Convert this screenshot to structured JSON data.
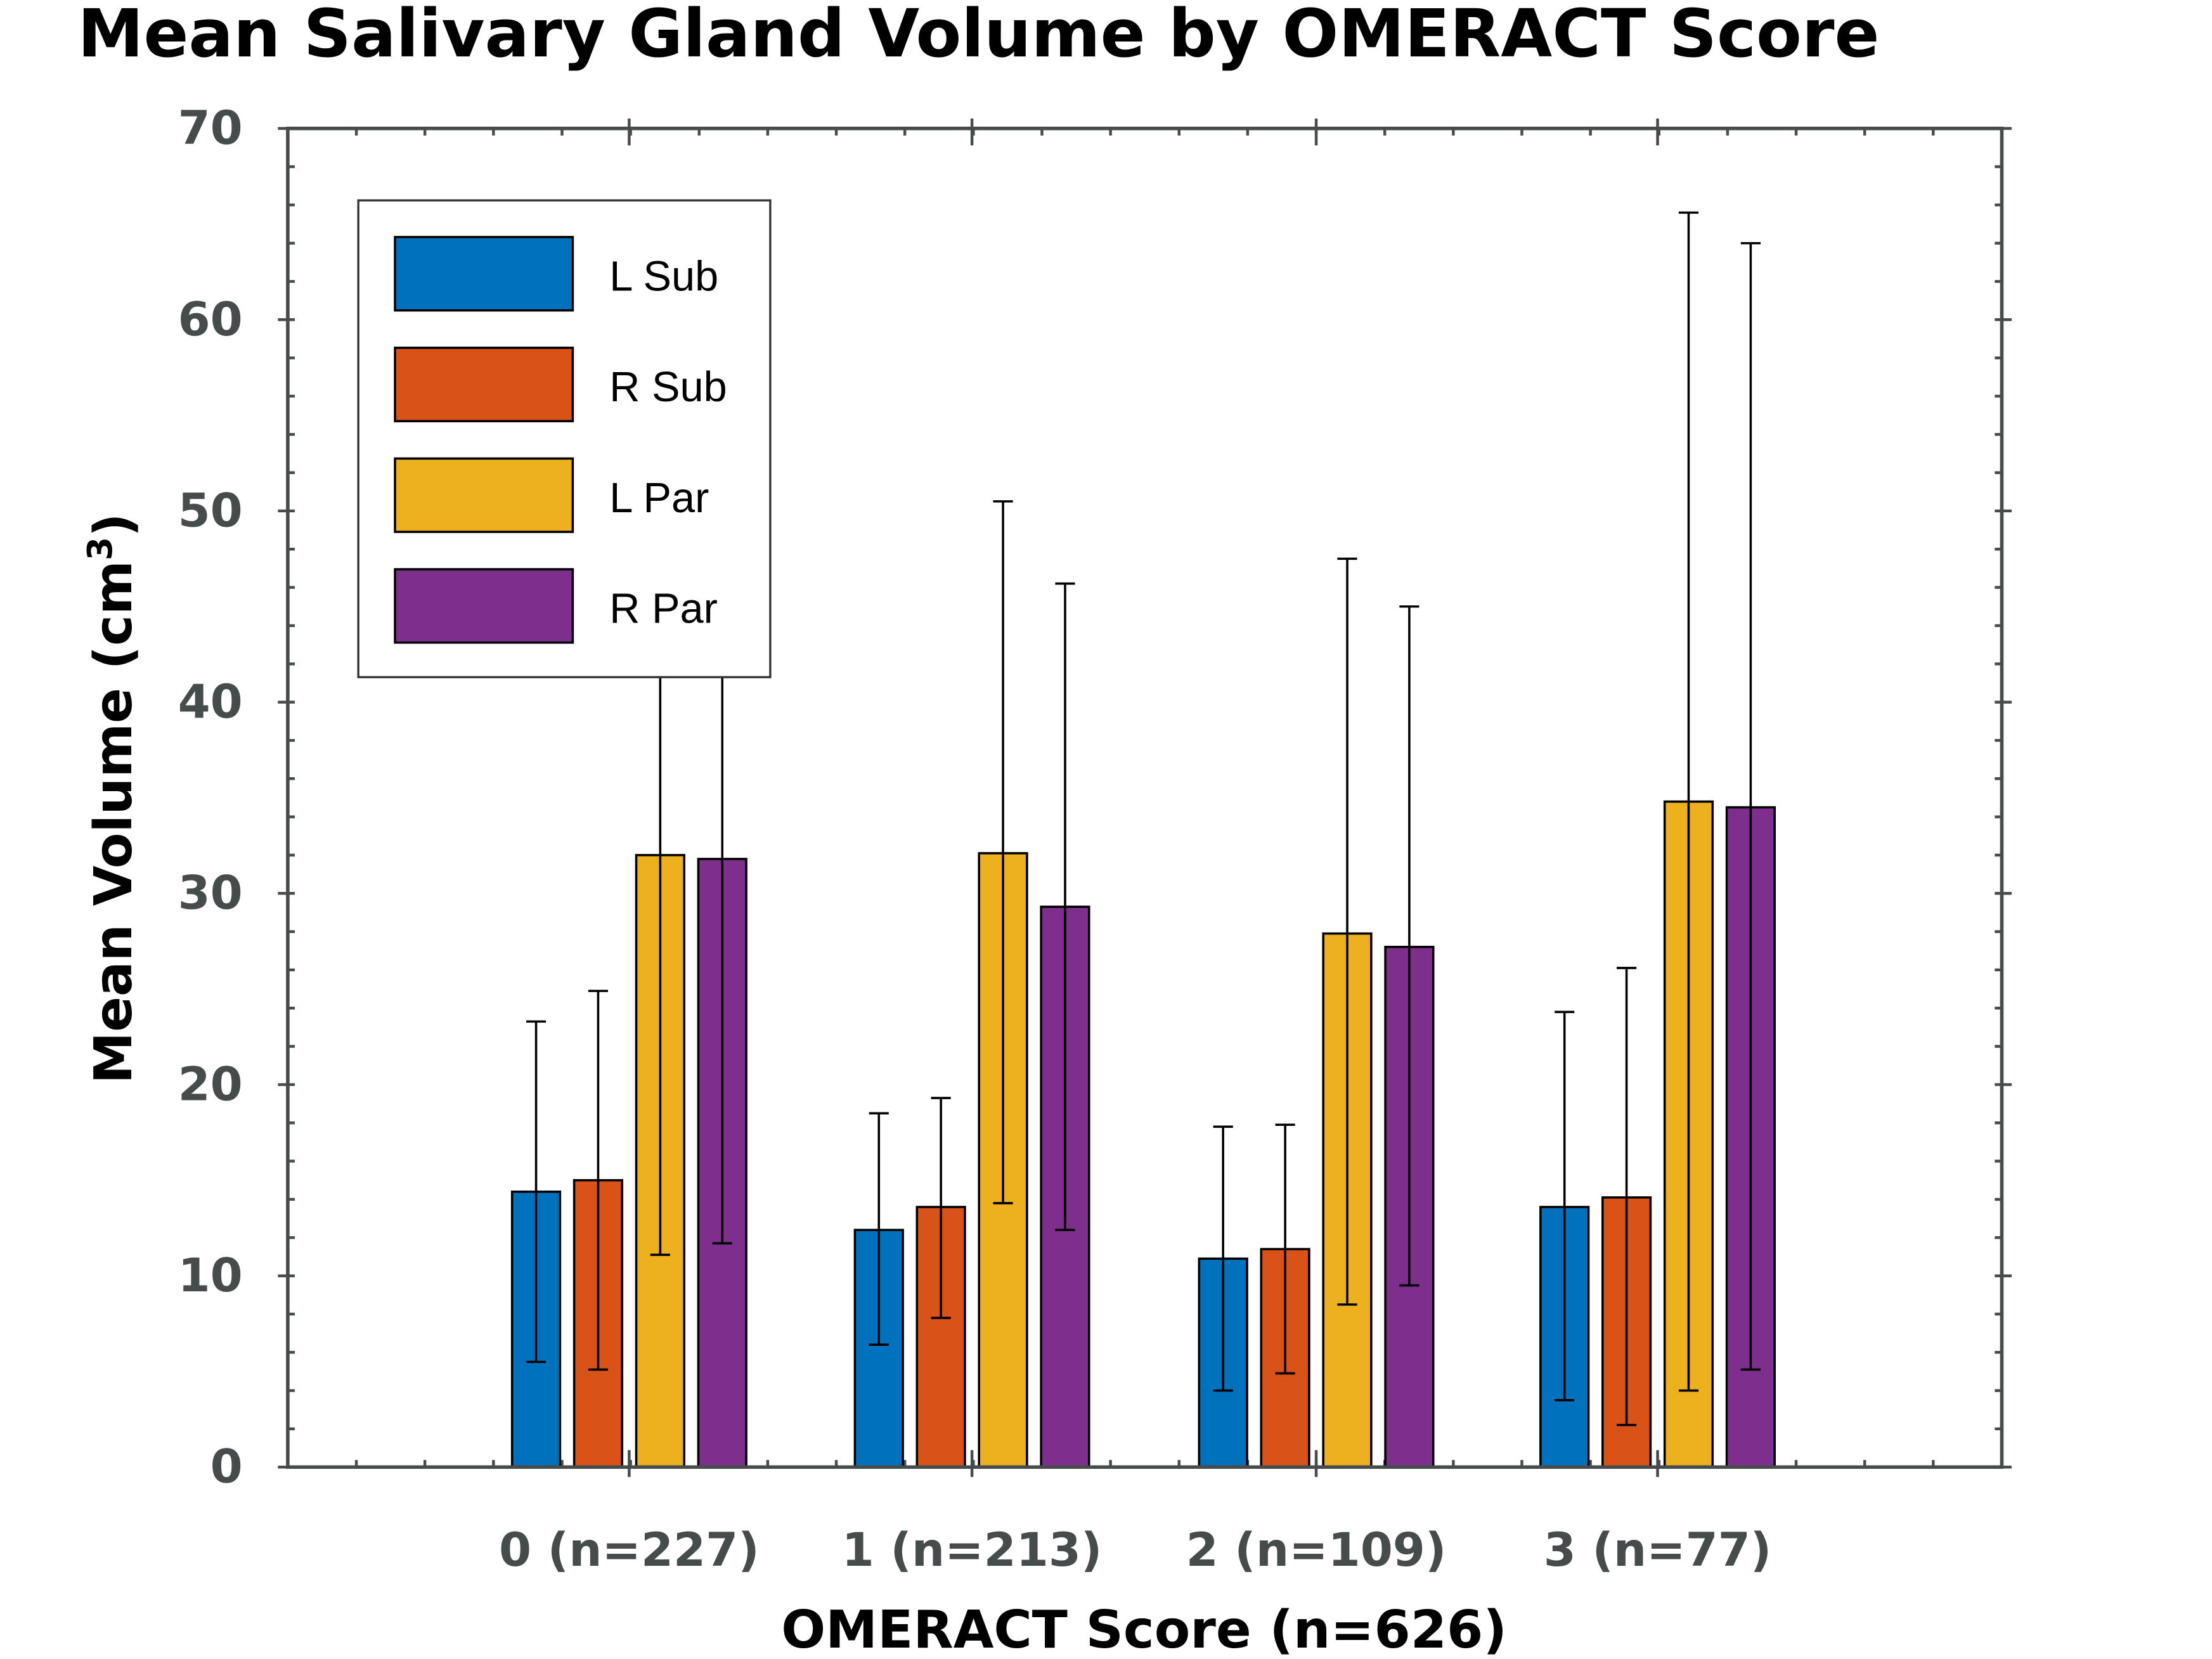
{
  "chart_data": {
    "type": "bar",
    "title": "Mean Salivary Gland Volume by OMERACT Score",
    "xlabel": "OMERACT Score (n=626)",
    "ylabel": "Mean Volume (cm",
    "ylabel_superscript": "3",
    "ylabel_suffix": ")",
    "ylim": [
      0,
      70
    ],
    "yticks": [
      0,
      10,
      20,
      30,
      40,
      50,
      60,
      70
    ],
    "grid": false,
    "legend_position": "top-left",
    "categories": [
      "0 (n=227)",
      "1 (n=213)",
      "2 (n=109)",
      "3 (n=77)"
    ],
    "series": [
      {
        "name": "L Sub",
        "color": "#0072bd",
        "values": [
          14.4,
          12.4,
          10.9,
          13.6
        ],
        "err_low": [
          5.5,
          6.4,
          4.0,
          3.5
        ],
        "err_high": [
          23.3,
          18.5,
          17.8,
          23.8
        ]
      },
      {
        "name": "R Sub",
        "color": "#d95319",
        "values": [
          15.0,
          13.6,
          11.4,
          14.1
        ],
        "err_low": [
          5.1,
          7.8,
          4.9,
          2.2
        ],
        "err_high": [
          24.9,
          19.3,
          17.9,
          26.1
        ]
      },
      {
        "name": "L Par",
        "color": "#edb120",
        "values": [
          32.0,
          32.1,
          27.9,
          34.8
        ],
        "err_low": [
          11.1,
          13.8,
          8.5,
          4.0
        ],
        "err_high": [
          52.9,
          50.5,
          47.5,
          65.6
        ]
      },
      {
        "name": "R Par",
        "color": "#7e2f8e",
        "values": [
          31.8,
          29.3,
          27.2,
          34.5
        ],
        "err_low": [
          11.7,
          12.4,
          9.5,
          5.1
        ],
        "err_high": [
          51.9,
          46.2,
          45.0,
          64.0
        ]
      }
    ]
  }
}
